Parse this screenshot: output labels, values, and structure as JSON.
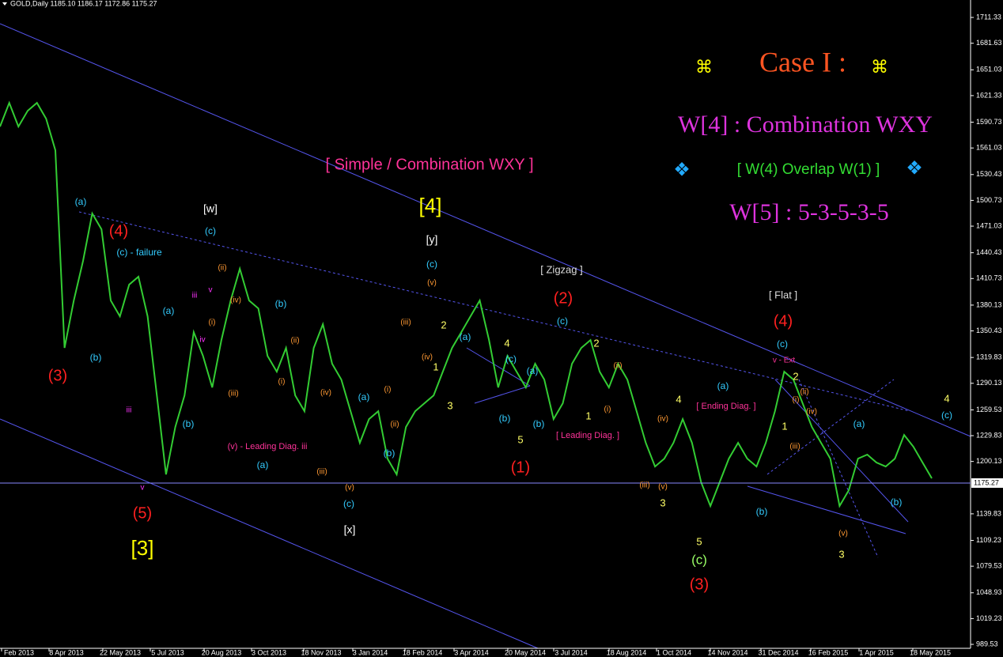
{
  "chart_data": {
    "type": "line",
    "header": "GOLD,Daily  1185.10 1186.17 1172.86 1175.27",
    "series": [
      {
        "name": "GOLD",
        "color": "#33cc33",
        "values": [
          1585.7,
          1613.0,
          1585.7,
          1603.9,
          1613.0,
          1594.8,
          1558.4,
          1330.8,
          1385.4,
          1431.0,
          1485.6,
          1467.4,
          1385.4,
          1367.2,
          1403.7,
          1412.8,
          1367.2,
          1276.2,
          1185.2,
          1239.8,
          1276.2,
          1349.0,
          1321.7,
          1285.3,
          1339.9,
          1385.4,
          1421.9,
          1385.4,
          1376.3,
          1321.7,
          1303.5,
          1330.8,
          1276.2,
          1258.0,
          1330.8,
          1358.1,
          1312.6,
          1294.4,
          1258.0,
          1221.6,
          1248.9,
          1258.0,
          1203.4,
          1185.2,
          1239.8,
          1258.0,
          1267.1,
          1276.2,
          1303.5,
          1330.8,
          1349.0,
          1367.2,
          1385.4,
          1340.0,
          1285.3,
          1321.7,
          1303.5,
          1285.3,
          1312.6,
          1294.4,
          1248.9,
          1267.1,
          1312.6,
          1330.8,
          1339.9,
          1303.5,
          1285.3,
          1312.6,
          1294.4,
          1258.0,
          1221.6,
          1194.3,
          1203.4,
          1221.6,
          1248.9,
          1221.6,
          1176.1,
          1148.8,
          1176.1,
          1203.4,
          1221.6,
          1203.4,
          1194.3,
          1221.6,
          1258.0,
          1303.5,
          1294.4,
          1267.1,
          1239.8,
          1221.6,
          1203.4,
          1148.8,
          1167.0,
          1203.4,
          1208.0,
          1198.9,
          1194.3,
          1203.4,
          1230.7,
          1217.1,
          1198.9,
          1180.7
        ]
      }
    ],
    "last_price": 1175.27,
    "ylim": [
      985,
      1731.4
    ],
    "yticks": [
      1711.33,
      1681.63,
      1651.03,
      1621.33,
      1590.73,
      1561.03,
      1530.43,
      1500.73,
      1471.03,
      1440.43,
      1410.73,
      1380.13,
      1350.43,
      1319.83,
      1290.13,
      1259.53,
      1229.83,
      1200.13,
      1139.83,
      1109.23,
      1079.53,
      1048.93,
      1019.23,
      989.53
    ],
    "x_tick_labels": [
      "Feb 2013",
      "8 Apr 2013",
      "22 May 2013",
      "5 Jul 2013",
      "20 Aug 2013",
      "3 Oct 2013",
      "18 Nov 2013",
      "3 Jan 2014",
      "18 Feb 2014",
      "3 Apr 2014",
      "20 May 2014",
      "3 Jul 2014",
      "18 Aug 2014",
      "1 Oct 2014",
      "14 Nov 2014",
      "31 Dec 2014",
      "16 Feb 2015",
      "1 Apr 2015",
      "18 May 2015"
    ],
    "panel": {
      "symbol_left": "⌘",
      "case": "Case I :",
      "symbol_right": "⌘",
      "w4": "W[4] : Combination WXY",
      "diamond_left": "❖",
      "overlap": "[ W(4) Overlap W(1) ]",
      "diamond_right": "❖",
      "w5": "W[5] : 5-3-5-3-5",
      "subtitle": "[ Simple / Combination WXY ]"
    },
    "annotations": [
      {
        "text": "(3)",
        "color": "#ff2020"
      },
      {
        "text": "(4)",
        "color": "#ff2020"
      },
      {
        "text": "(5)",
        "color": "#ff2020"
      },
      {
        "text": "(2)",
        "color": "#ff2020"
      },
      {
        "text": "(1)",
        "color": "#ff2020"
      },
      {
        "text": "(4)",
        "color": "#ff2020"
      },
      {
        "text": "(3)",
        "color": "#ff2020"
      },
      {
        "text": "[3]",
        "color": "#ffff00"
      },
      {
        "text": "[4]",
        "color": "#ffff00"
      },
      {
        "text": "4",
        "color": "#ffff66"
      },
      {
        "text": "2",
        "color": "#ffff66"
      },
      {
        "text": "1",
        "color": "#ffff66"
      },
      {
        "text": "3",
        "color": "#ffff66"
      },
      {
        "text": "5",
        "color": "#ffff66"
      },
      {
        "text": "2",
        "color": "#ffff66"
      },
      {
        "text": "1",
        "color": "#ffff66"
      },
      {
        "text": "4",
        "color": "#ffff66"
      },
      {
        "text": "3",
        "color": "#ffff66"
      },
      {
        "text": "5",
        "color": "#ffff66"
      },
      {
        "text": "2",
        "color": "#ffff66"
      },
      {
        "text": "1",
        "color": "#ffff66"
      },
      {
        "text": "3",
        "color": "#ffff66"
      },
      {
        "text": "4",
        "color": "#ffff66"
      },
      {
        "text": "(c)",
        "color": "#99ff66"
      },
      {
        "text": "[w]",
        "color": "#ffffff"
      },
      {
        "text": "[y]",
        "color": "#ffffff"
      },
      {
        "text": "[x]",
        "color": "#ffffff"
      },
      {
        "text": "[ Zigzag ]",
        "color": "#dddddd"
      },
      {
        "text": "[ Flat ]",
        "color": "#dddddd"
      },
      {
        "text": "(a)",
        "color": "#33ccff"
      },
      {
        "text": "(b)",
        "color": "#33ccff"
      },
      {
        "text": "(c) - failure",
        "color": "#33ccff"
      },
      {
        "text": "(c)",
        "color": "#33ccff"
      },
      {
        "text": "(a)",
        "color": "#33ccff"
      },
      {
        "text": "(b)",
        "color": "#33ccff"
      },
      {
        "text": "(b)",
        "color": "#33ccff"
      },
      {
        "text": "(a)",
        "color": "#33ccff"
      },
      {
        "text": "(c)",
        "color": "#33ccff"
      },
      {
        "text": "(a)",
        "color": "#33ccff"
      },
      {
        "text": "(b)",
        "color": "#33ccff"
      },
      {
        "text": "(c)",
        "color": "#33ccff"
      },
      {
        "text": "(a)",
        "color": "#33ccff"
      },
      {
        "text": "(c)",
        "color": "#33ccff"
      },
      {
        "text": "(b)",
        "color": "#33ccff"
      },
      {
        "text": "(a)",
        "color": "#33ccff"
      },
      {
        "text": "(b)",
        "color": "#33ccff"
      },
      {
        "text": "(c)",
        "color": "#33ccff"
      },
      {
        "text": "(a)",
        "color": "#33ccff"
      },
      {
        "text": "(b)",
        "color": "#33ccff"
      },
      {
        "text": "(c)",
        "color": "#33ccff"
      },
      {
        "text": "(a)",
        "color": "#33ccff"
      },
      {
        "text": "(b)",
        "color": "#33ccff"
      },
      {
        "text": "(c)",
        "color": "#33ccff"
      },
      {
        "text": "(ii)",
        "color": "#ff9933"
      },
      {
        "text": "(iv)",
        "color": "#ff9933"
      },
      {
        "text": "(i)",
        "color": "#ff9933"
      },
      {
        "text": "(iii)",
        "color": "#ff9933"
      },
      {
        "text": "(ii)",
        "color": "#ff9933"
      },
      {
        "text": "(i)",
        "color": "#ff9933"
      },
      {
        "text": "(iv)",
        "color": "#ff9933"
      },
      {
        "text": "(iii)",
        "color": "#ff9933"
      },
      {
        "text": "(v)",
        "color": "#ff9933"
      },
      {
        "text": "(iii)",
        "color": "#ff9933"
      },
      {
        "text": "(v)",
        "color": "#ff9933"
      },
      {
        "text": "(iv)",
        "color": "#ff9933"
      },
      {
        "text": "(i)",
        "color": "#ff9933"
      },
      {
        "text": "(ii)",
        "color": "#ff9933"
      },
      {
        "text": "(ii)",
        "color": "#ff9933"
      },
      {
        "text": "(i)",
        "color": "#ff9933"
      },
      {
        "text": "(iv)",
        "color": "#ff9933"
      },
      {
        "text": "(iii)",
        "color": "#ff9933"
      },
      {
        "text": "(v)",
        "color": "#ff9933"
      },
      {
        "text": "(ii)",
        "color": "#ff9933"
      },
      {
        "text": "(iv)",
        "color": "#ff9933"
      },
      {
        "text": "(iii)",
        "color": "#ff9933"
      },
      {
        "text": "(i)",
        "color": "#ff9933"
      },
      {
        "text": "(v)",
        "color": "#ff9933"
      },
      {
        "text": "(v) - Leading Diag. iii",
        "color": "#ff3399"
      },
      {
        "text": "[ Leading Diag. ]",
        "color": "#ff3399"
      },
      {
        "text": "[ Ending Diag. ]",
        "color": "#ff3399"
      },
      {
        "text": "v - Ext",
        "color": "#ff3399"
      },
      {
        "text": "iii",
        "color": "#ff33ff"
      },
      {
        "text": "v",
        "color": "#ff33ff"
      },
      {
        "text": "iii",
        "color": "#ff33ff"
      },
      {
        "text": "v",
        "color": "#ff33ff"
      },
      {
        "text": "iv",
        "color": "#ff33ff"
      }
    ]
  }
}
